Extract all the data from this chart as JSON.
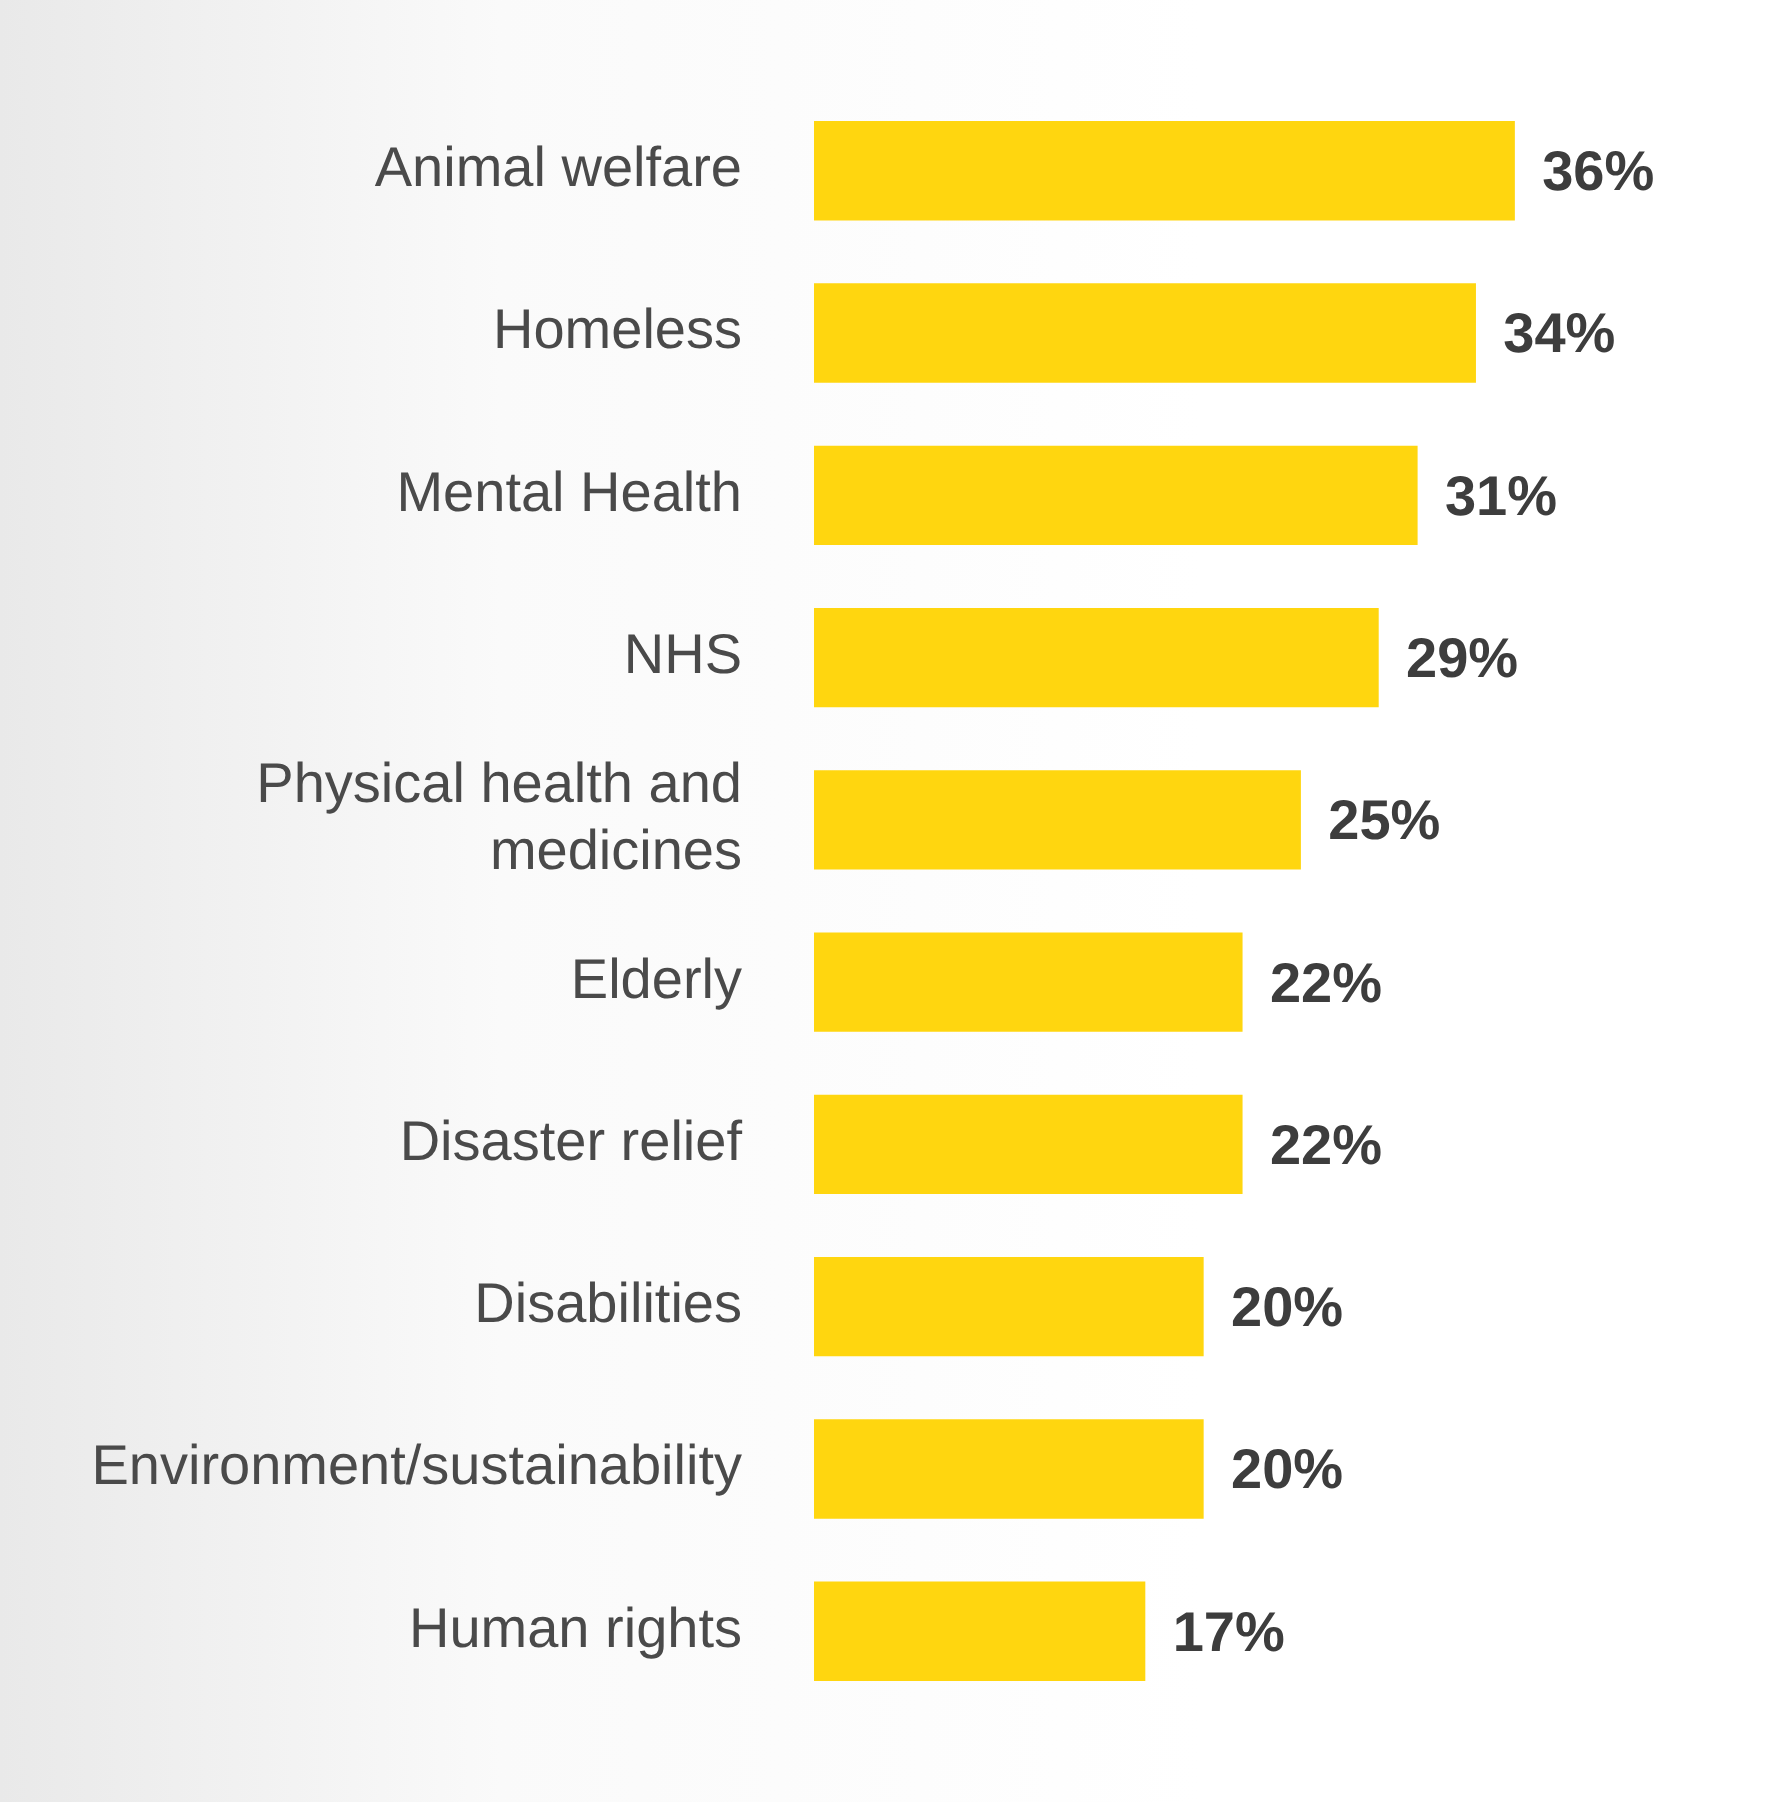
{
  "chart_data": {
    "type": "bar",
    "orientation": "horizontal",
    "categories": [
      "Animal welfare",
      "Homeless",
      "Mental Health",
      "NHS",
      "Physical health and medicines",
      "Elderly",
      "Disaster relief",
      "Disabilities",
      "Environment/sustainability",
      "Human rights"
    ],
    "values": [
      36,
      34,
      31,
      29,
      25,
      22,
      22,
      20,
      20,
      17
    ],
    "value_labels": [
      "36%",
      "34%",
      "31%",
      "29%",
      "25%",
      "22%",
      "22%",
      "20%",
      "20%",
      "17%"
    ],
    "color": "#ffd60f"
  }
}
